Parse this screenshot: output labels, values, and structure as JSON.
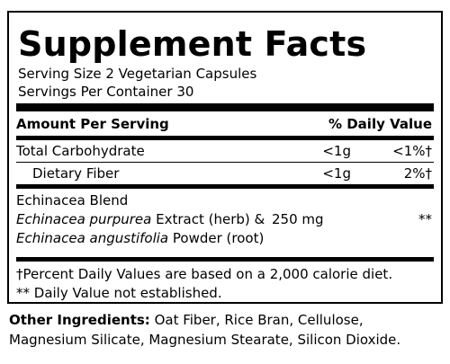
{
  "title": "Supplement Facts",
  "serving_size": "Serving Size 2 Vegetarian Capsules",
  "servings_per_container": "Servings Per Container 30",
  "header": {
    "amount_per_serving": "Amount Per Serving",
    "daily_value": "% Daily Value"
  },
  "rows": [
    {
      "name": "Total Carbohydrate",
      "amount": "<1g",
      "dv": "<1%†"
    },
    {
      "name": "Dietary Fiber",
      "amount": "<1g",
      "dv": "2%†"
    }
  ],
  "blend": {
    "name": "Echinacea Blend",
    "line1_italic": "Echinacea purpurea",
    "line1_rest": " Extract (herb) &",
    "line2_italic": "Echinacea angustifolia",
    "line2_rest": " Powder (root)",
    "amount": "250 mg",
    "dv": "**"
  },
  "footnotes": [
    "†Percent Daily Values are based on a 2,000 calorie diet.",
    "** Daily Value not established."
  ],
  "other_ingredients": {
    "label": "Other Ingredients:",
    "text": " Oat Fiber, Rice Bran, Cellulose, Magnesium Silicate, Magnesium Stearate, Silicon Dioxide."
  }
}
